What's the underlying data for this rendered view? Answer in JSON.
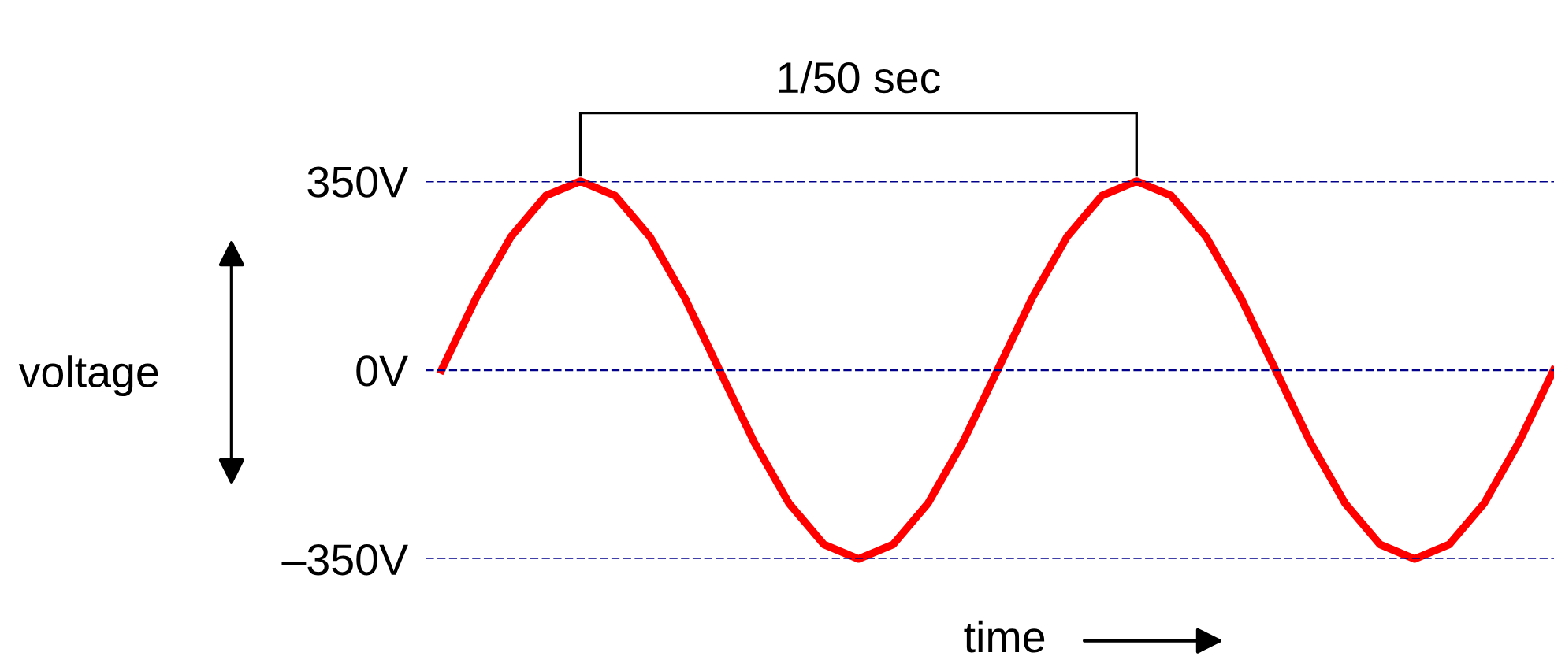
{
  "chart_data": {
    "type": "line",
    "title": "1/50 sec",
    "xlabel": "time",
    "ylabel": "voltage",
    "categories": [
      null,
      null,
      null,
      null,
      null,
      null,
      null,
      null,
      null,
      null,
      null,
      null,
      null,
      null,
      null,
      null,
      null,
      null,
      null,
      null,
      null,
      null,
      null,
      null,
      null,
      null,
      null,
      null,
      null,
      null,
      null,
      null,
      null
    ],
    "series": [
      {
        "color": "#ff0000",
        "values": [
          0,
          134,
          247,
          323,
          350,
          323,
          247,
          134,
          0,
          -134,
          -247,
          -323,
          -350,
          -323,
          -247,
          -134,
          0,
          134,
          247,
          323,
          350,
          323,
          247,
          134,
          0,
          -134,
          -247,
          -323,
          -350,
          -323,
          -247,
          -134,
          0
        ]
      }
    ],
    "ylim": [
      -350,
      350
    ],
    "yticks": [
      {
        "value": -350,
        "label": "–350V"
      },
      {
        "value": 0,
        "label": "0V"
      },
      {
        "value": 350,
        "label": "350V"
      }
    ],
    "legend": false,
    "line_style": "solid",
    "marker": "none",
    "ref_lines": [
      {
        "axis": "y",
        "value": 350,
        "color": "#00008b",
        "line_style": "dashed"
      },
      {
        "axis": "y",
        "value": 0,
        "color": "#00008b",
        "line_style": "dashed"
      },
      {
        "axis": "y",
        "value": -350,
        "color": "#00008b",
        "line_style": "dashed"
      }
    ]
  }
}
